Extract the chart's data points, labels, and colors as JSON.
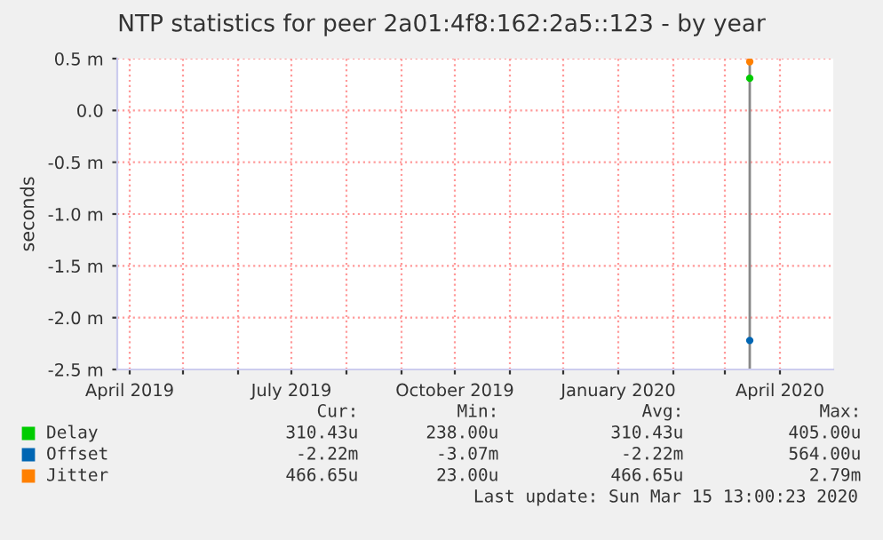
{
  "chart_data": {
    "type": "line",
    "title": "NTP statistics for peer 2a01:4f8:162:2a5::123 - by year",
    "ylabel": "seconds",
    "xlim": [
      "2019-03-25",
      "2020-05-01"
    ],
    "xticks": [
      {
        "value": "2019-04-01",
        "label": "April 2019"
      },
      {
        "value": "2019-05-01",
        "label": null
      },
      {
        "value": "2019-06-01",
        "label": null
      },
      {
        "value": "2019-07-01",
        "label": "July 2019"
      },
      {
        "value": "2019-08-01",
        "label": null
      },
      {
        "value": "2019-09-01",
        "label": null
      },
      {
        "value": "2019-10-01",
        "label": "October 2019"
      },
      {
        "value": "2019-11-01",
        "label": null
      },
      {
        "value": "2019-12-01",
        "label": null
      },
      {
        "value": "2020-01-01",
        "label": "January 2020"
      },
      {
        "value": "2020-02-01",
        "label": null
      },
      {
        "value": "2020-03-01",
        "label": null
      },
      {
        "value": "2020-04-01",
        "label": "April 2020"
      }
    ],
    "ylim": [
      -2.5,
      0.5
    ],
    "yticks": [
      {
        "value": -2.5,
        "label": "-2.5 m"
      },
      {
        "value": -2.0,
        "label": "-2.0 m"
      },
      {
        "value": -1.5,
        "label": "-1.5 m"
      },
      {
        "value": -1.0,
        "label": "-1.0 m"
      },
      {
        "value": -0.5,
        "label": "-0.5 m"
      },
      {
        "value": 0,
        "label": "0.0"
      },
      {
        "value": 0.5,
        "label": "0.5 m"
      }
    ],
    "grid": true,
    "legend": "bottom left",
    "marker": "circle",
    "series": [
      {
        "name": "Delay",
        "color": "#00cc00",
        "x": [
          "2020-03-15"
        ],
        "values": [
          0.31
        ]
      },
      {
        "name": "Offset",
        "color": "#0066b3",
        "x": [
          "2020-03-15"
        ],
        "values": [
          -2.22
        ]
      },
      {
        "name": "Jitter",
        "color": "#ff8000",
        "x": [
          "2020-03-15"
        ],
        "values": [
          0.47
        ]
      }
    ],
    "ref_lines": [
      {
        "axis": "x",
        "value": "2020-03-15",
        "label": null,
        "color": "#888888"
      }
    ],
    "annotations": [
      "Cur:",
      "Min:",
      "Avg:",
      "Max:",
      "310.43u",
      "238.00u",
      "310.43u",
      "405.00u",
      "-2.22m",
      "-3.07m",
      "-2.22m",
      "564.00u",
      "466.65u",
      "23.00u",
      "466.65u",
      "2.79m",
      "Last update: Sun Mar 15 13:00:23 2020"
    ]
  }
}
